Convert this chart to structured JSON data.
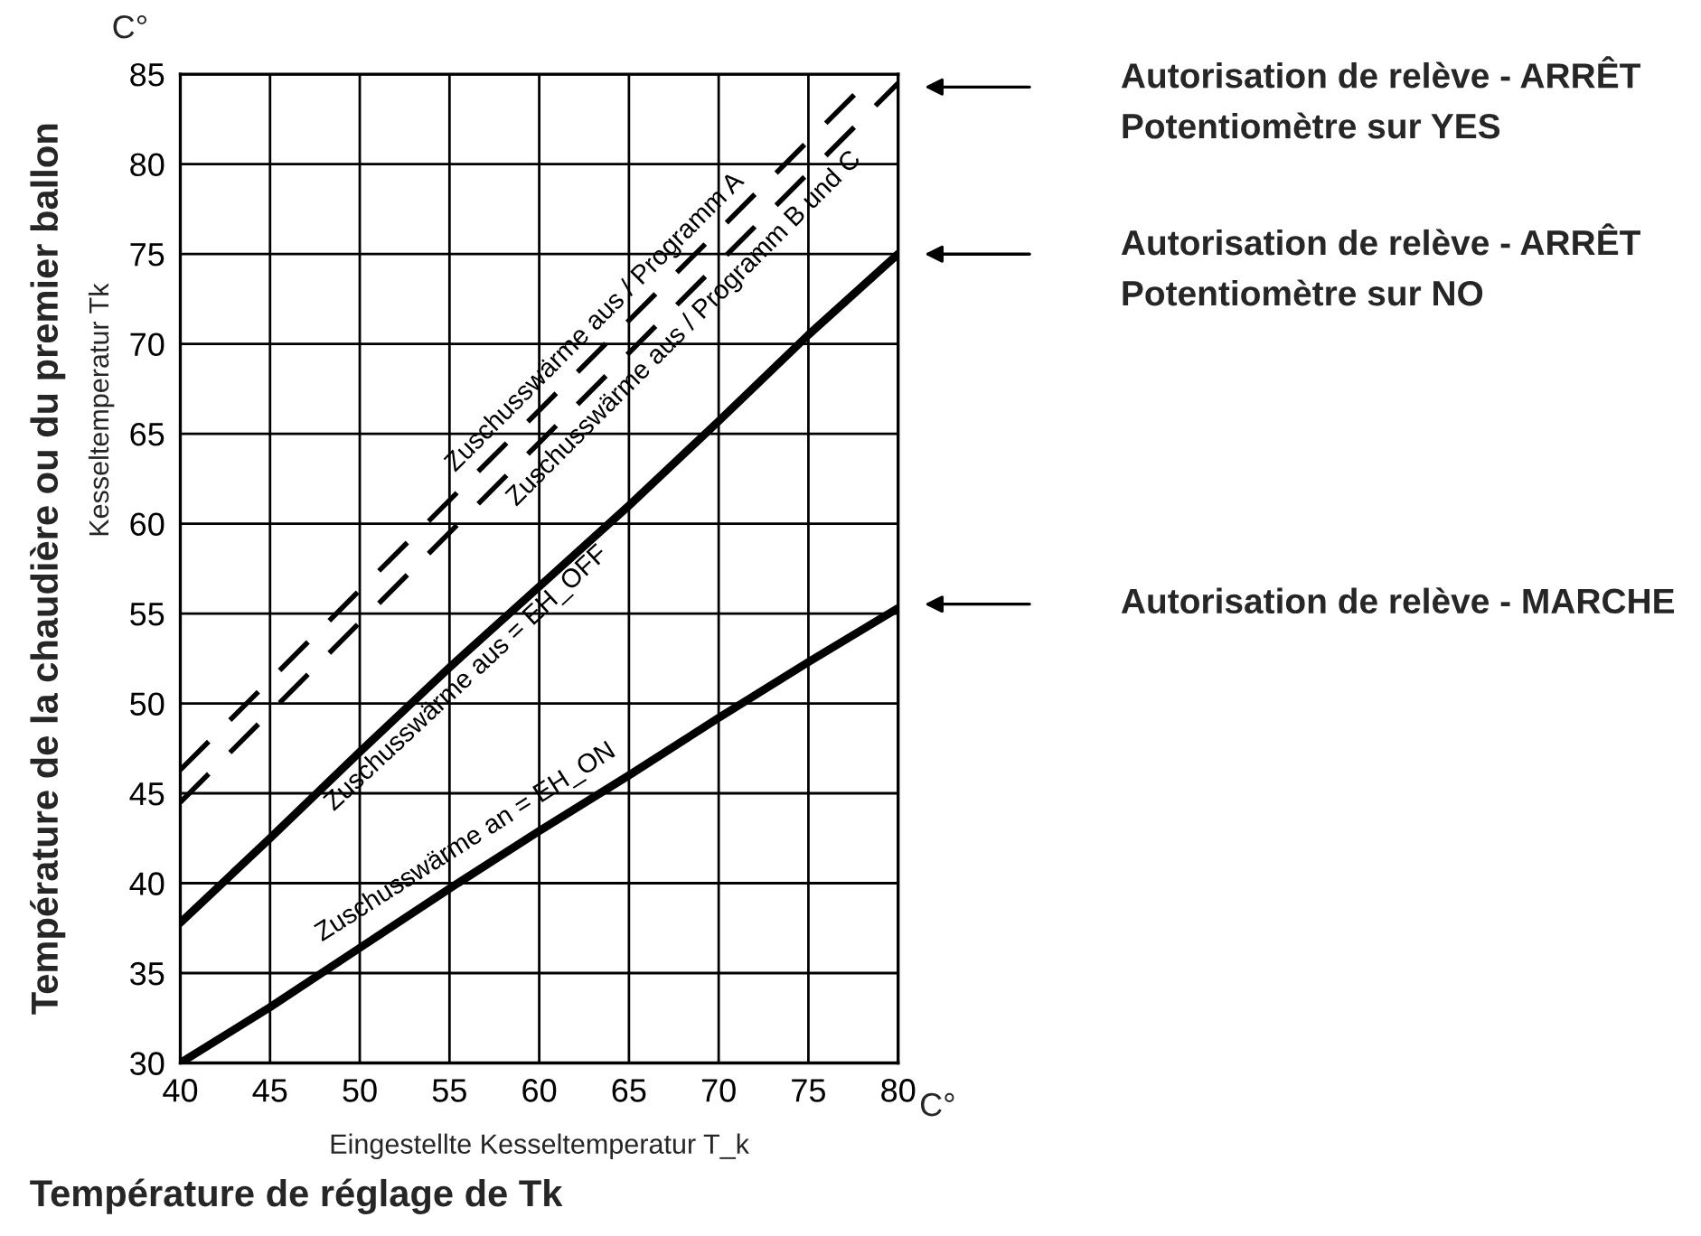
{
  "chart_data": {
    "type": "line",
    "ylabel": "Température de la chaudière ou du premier ballon",
    "xlabel": "Eingestellte Kesseltemperatur T_k",
    "x": [
      40,
      45,
      50,
      55,
      60,
      65,
      70,
      75,
      80
    ],
    "series": [
      {
        "name": "Zuschusswärme aus / Programm A",
        "color": "#000000",
        "line_style": "dashed",
        "x": [
          40,
          50,
          60,
          70,
          78.7
        ],
        "values": [
          46.3,
          56.3,
          66.3,
          76.3,
          85
        ]
      },
      {
        "name": "Zuschusswärme aus / Programm B und C",
        "color": "#000000",
        "line_style": "dashed",
        "x": [
          40,
          50,
          60,
          70,
          80
        ],
        "values": [
          44.5,
          54.5,
          64.5,
          74.5,
          84.5
        ]
      },
      {
        "name": "Zuschusswärme aus = EH_OFF",
        "color": "#000000",
        "line_style": "solid",
        "values": [
          37.8,
          42.5,
          47.3,
          52,
          56.5,
          61,
          65.7,
          70.5,
          75
        ]
      },
      {
        "name": "Zuschusswärme an = EH_ON",
        "color": "#000000",
        "line_style": "solid",
        "values": [
          30,
          33.1,
          36.4,
          39.7,
          42.9,
          46,
          49.2,
          52.3,
          55.3
        ]
      }
    ],
    "xlim": [
      40,
      80
    ],
    "ylim": [
      30,
      85
    ],
    "xticks": [
      40,
      45,
      50,
      55,
      60,
      65,
      70,
      75,
      80
    ],
    "yticks": [
      30,
      35,
      40,
      45,
      50,
      55,
      60,
      65,
      70,
      75,
      80,
      85
    ],
    "grid": true,
    "legend": false,
    "marker": "none",
    "annotations": [
      "C°",
      "C°",
      "Kesseltemperatur Tk",
      "Température de réglage de Tk",
      "Autorisation de relève - ARRÊT\nPotentiomètre sur YES",
      "Autorisation de relève - ARRÊT\nPotentiomètre sur NO",
      "Autorisation de relève - MARCHE"
    ]
  }
}
